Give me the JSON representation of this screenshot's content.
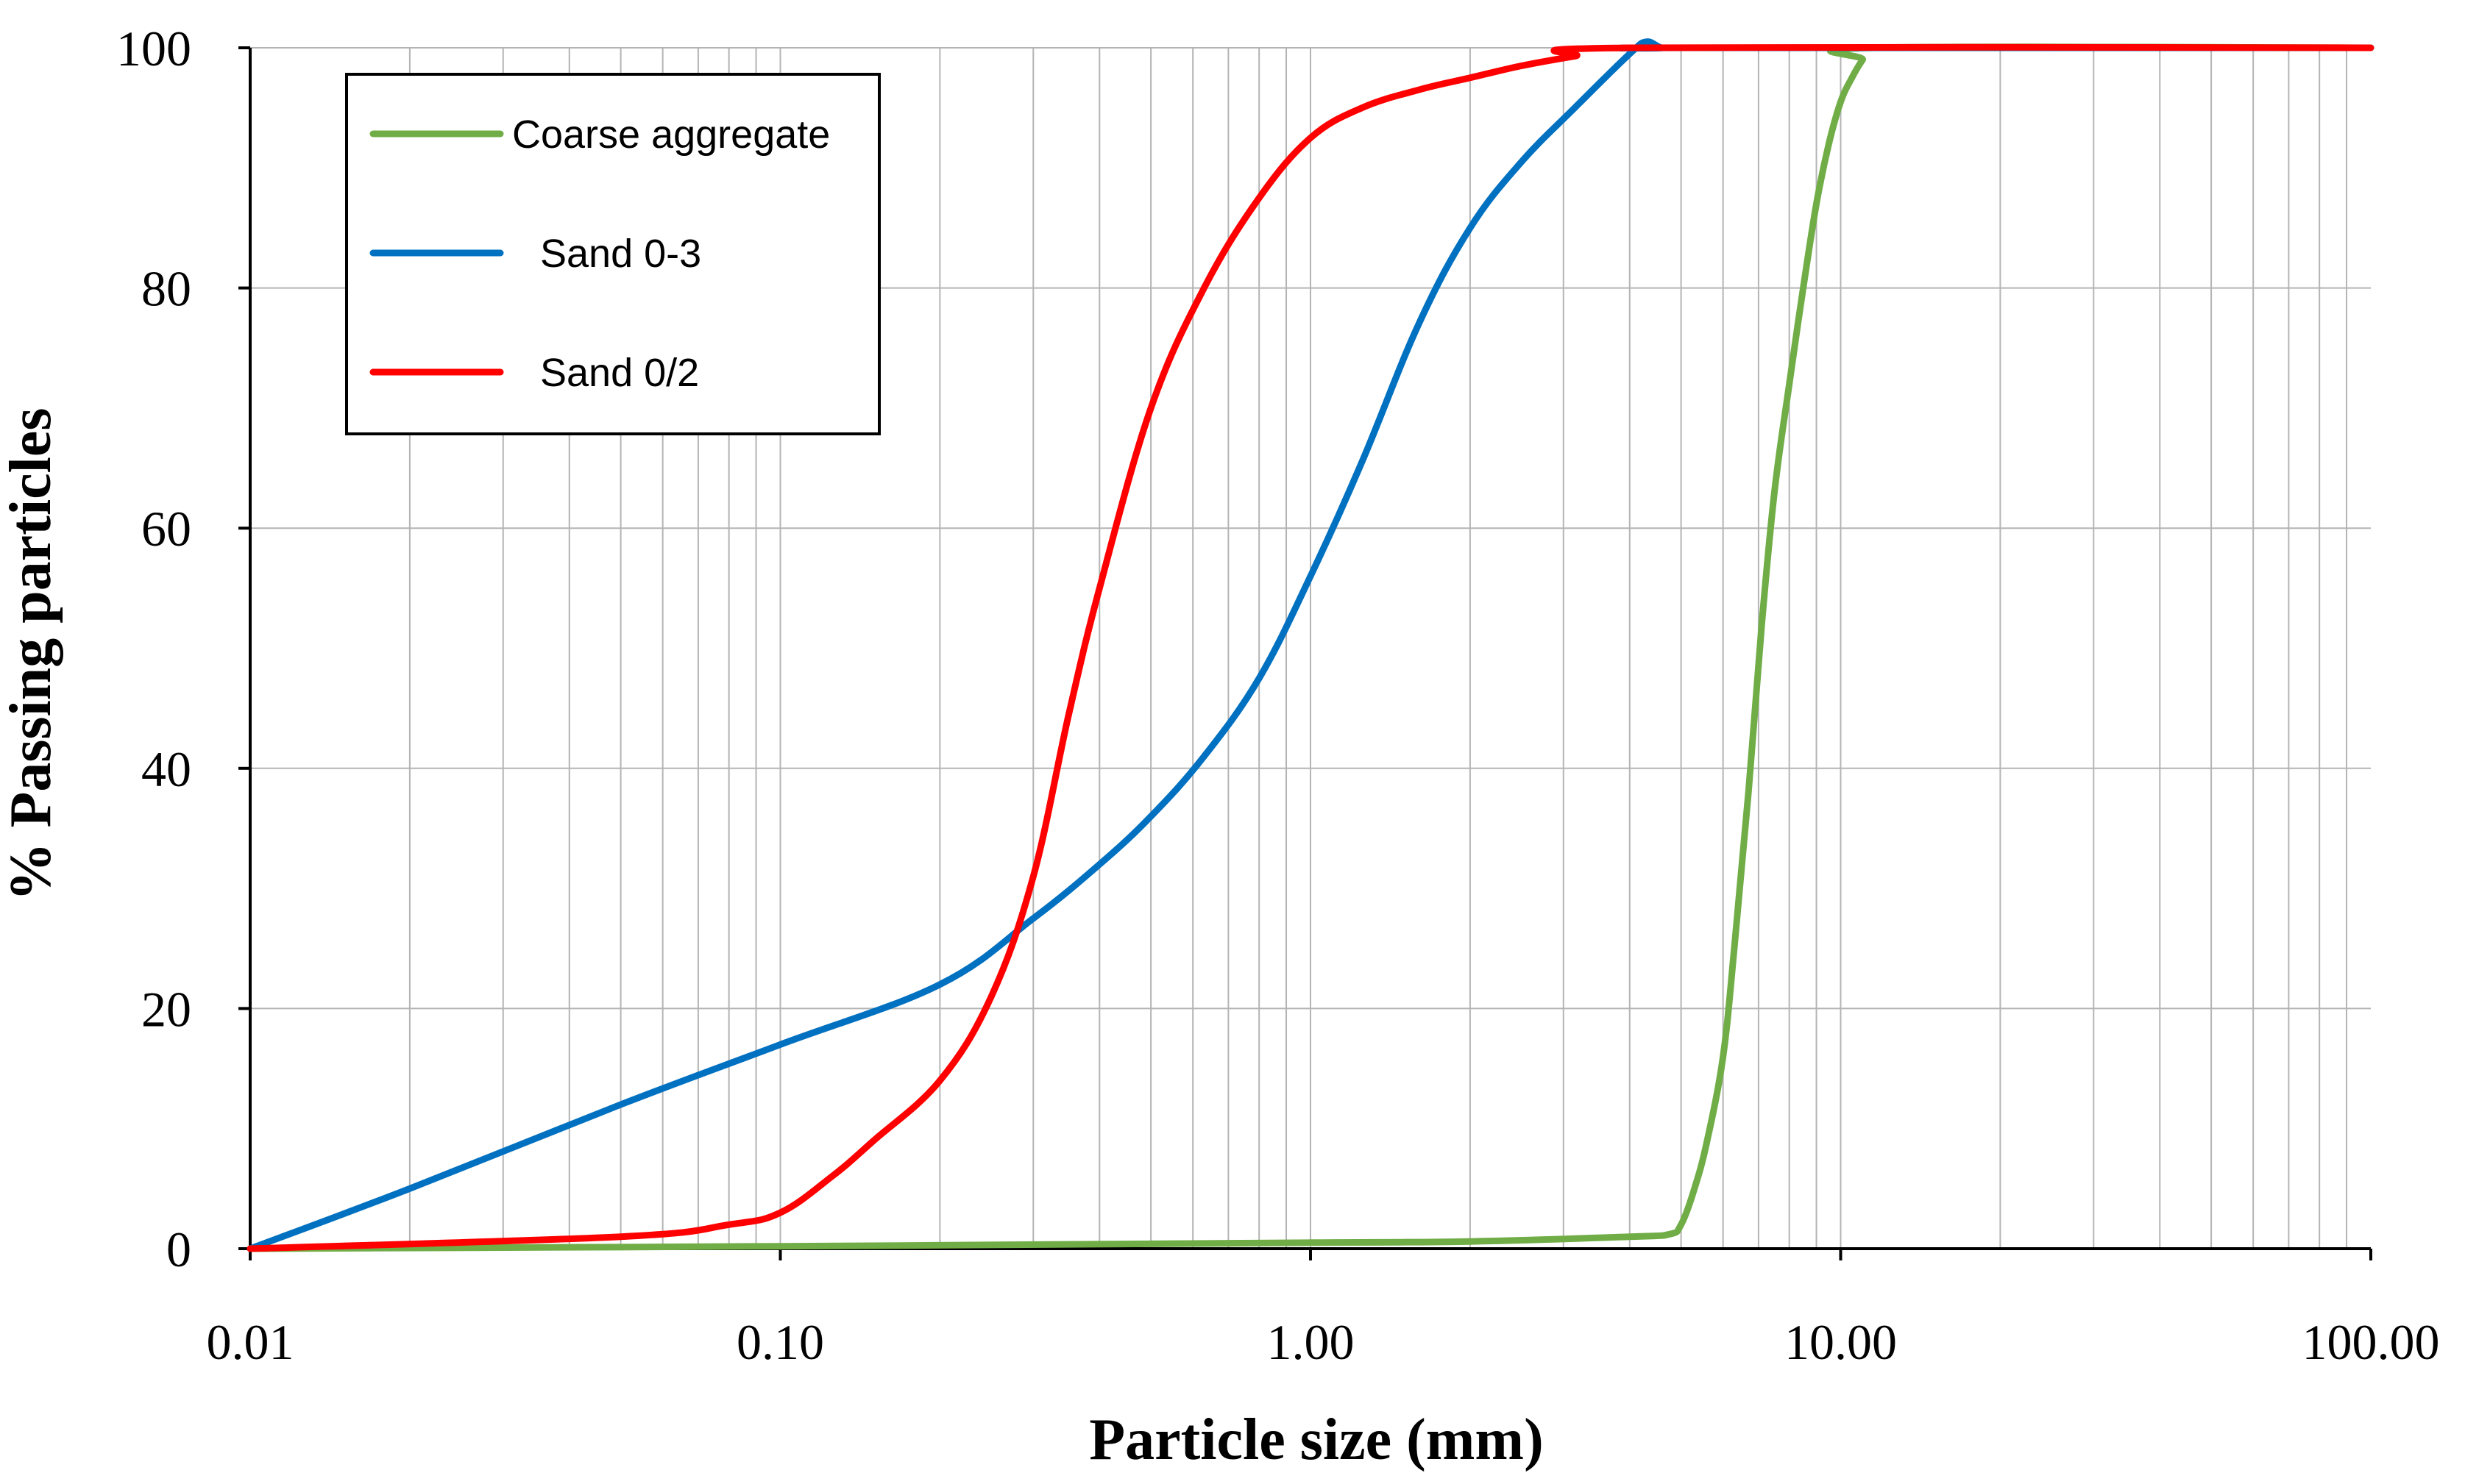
{
  "chart_data": {
    "type": "line",
    "x_scale": "log",
    "xlabel": "Particle size (mm)",
    "ylabel": "% Passing particles",
    "xlim": [
      0.01,
      100
    ],
    "ylim": [
      0,
      100
    ],
    "x_ticks": [
      0.01,
      0.1,
      1,
      10,
      100
    ],
    "x_tick_labels": [
      "0.01",
      "0.10",
      "1.00",
      "10.00",
      "100.00"
    ],
    "y_ticks": [
      0,
      20,
      40,
      60,
      80,
      100
    ],
    "y_tick_labels": [
      "0",
      "20",
      "40",
      "60",
      "80",
      "100"
    ],
    "grid": true,
    "legend_position": "top-left",
    "series": [
      {
        "name": "Coarse aggregate",
        "color": "#70AD47",
        "x": [
          0.01,
          0.1,
          1.0,
          2.0,
          4.0,
          4.75,
          5.0,
          5.3,
          5.6,
          6.0,
          6.3,
          6.7,
          7.1,
          7.5,
          8.0,
          8.5,
          9.0,
          9.5,
          10.0,
          10.5,
          11.0,
          11.5,
          100
        ],
        "y": [
          0,
          0.2,
          0.5,
          0.6,
          1.0,
          1.2,
          2.0,
          5.0,
          9.0,
          16.0,
          25.0,
          38.0,
          52.0,
          63.0,
          72.0,
          80.0,
          87.0,
          92.0,
          95.5,
          97.5,
          99.0,
          100,
          100
        ]
      },
      {
        "name": "Sand 0-3",
        "color": "#0070C0",
        "x": [
          0.01,
          0.02,
          0.05,
          0.1,
          0.2,
          0.3,
          0.4,
          0.5,
          0.63,
          0.8,
          1.0,
          1.25,
          1.6,
          2.0,
          2.5,
          3.15,
          4.0,
          4.3,
          4.6,
          5.0,
          100
        ],
        "y": [
          0,
          5,
          12,
          17,
          22,
          27.5,
          32,
          36,
          41,
          47.5,
          56,
          65.5,
          77,
          85,
          90.5,
          95,
          99.5,
          100.5,
          100,
          100,
          100
        ]
      },
      {
        "name": "Sand 0/2",
        "color": "#FF0000",
        "x": [
          0.01,
          0.05,
          0.08,
          0.1,
          0.125,
          0.15,
          0.2,
          0.25,
          0.3,
          0.35,
          0.4,
          0.5,
          0.63,
          0.8,
          1.0,
          1.25,
          1.6,
          2.0,
          2.5,
          3.15,
          4.0,
          100
        ],
        "y": [
          0,
          1,
          2,
          3,
          6,
          9,
          14,
          21,
          31,
          44.5,
          55,
          70,
          80,
          87.5,
          92.5,
          95,
          96.5,
          97.5,
          98.5,
          99.3,
          100,
          100
        ]
      }
    ]
  }
}
